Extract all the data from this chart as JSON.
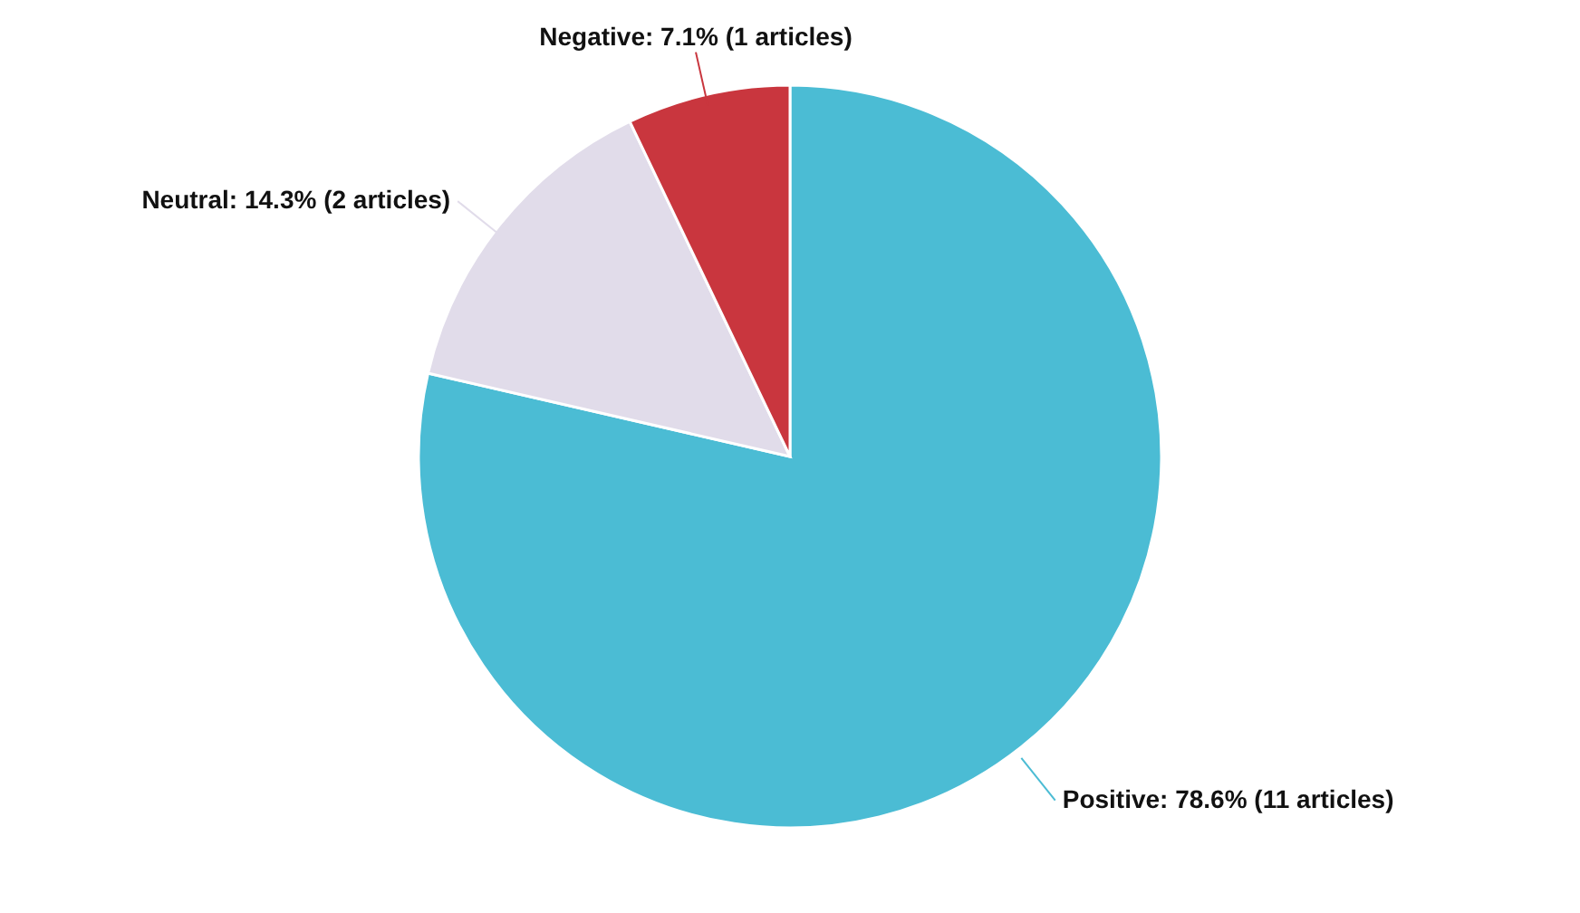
{
  "chart_data": {
    "type": "pie",
    "categories": [
      "Positive",
      "Neutral",
      "Negative"
    ],
    "values": [
      78.6,
      14.3,
      7.1
    ],
    "value_labels": [
      "78.6% (11 articles)",
      "14.3% (2 articles)",
      "7.1% (1 articles)"
    ],
    "colors": [
      "#4bbcd4",
      "#e1dcea",
      "#c9363e"
    ]
  }
}
